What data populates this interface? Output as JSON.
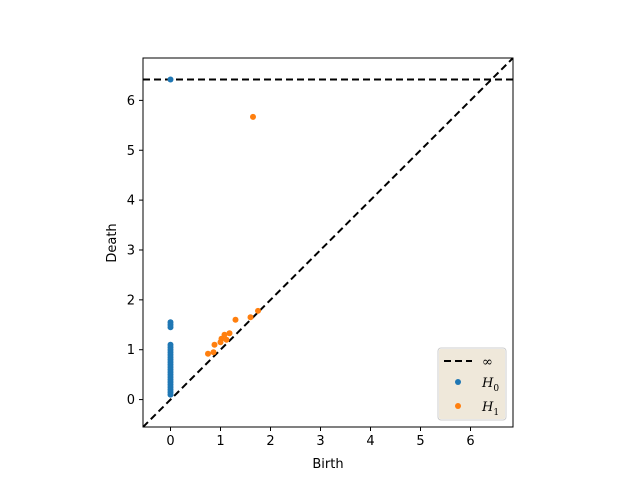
{
  "chart_data": {
    "type": "scatter",
    "title": "",
    "xlabel": "Birth",
    "ylabel": "Death",
    "xlim": [
      -0.55,
      6.85
    ],
    "ylim": [
      -0.55,
      6.85
    ],
    "xticks": [
      0,
      1,
      2,
      3,
      4,
      5,
      6
    ],
    "yticks": [
      0,
      1,
      2,
      3,
      4,
      5,
      6
    ],
    "grid": false,
    "legend_position": "bottom-right",
    "infinity_value": 6.42,
    "lines": [
      {
        "name": "∞",
        "kind": "horizontal",
        "y": 6.42,
        "style": "dashed",
        "color": "#000000"
      },
      {
        "kind": "diagonal",
        "style": "dashed",
        "color": "#000000"
      }
    ],
    "series": [
      {
        "name": "H",
        "subscript": "0",
        "color": "#1f77b4",
        "points": [
          [
            0,
            6.42
          ],
          [
            0,
            1.55
          ],
          [
            0,
            1.5
          ],
          [
            0,
            1.45
          ],
          [
            0,
            1.1
          ],
          [
            0,
            1.05
          ],
          [
            0,
            1.0
          ],
          [
            0,
            0.95
          ],
          [
            0,
            0.9
          ],
          [
            0,
            0.85
          ],
          [
            0,
            0.8
          ],
          [
            0,
            0.75
          ],
          [
            0,
            0.7
          ],
          [
            0,
            0.65
          ],
          [
            0,
            0.6
          ],
          [
            0,
            0.55
          ],
          [
            0,
            0.5
          ],
          [
            0,
            0.45
          ],
          [
            0,
            0.4
          ],
          [
            0,
            0.35
          ],
          [
            0,
            0.3
          ],
          [
            0,
            0.25
          ],
          [
            0,
            0.2
          ],
          [
            0,
            0.15
          ],
          [
            0,
            0.1
          ]
        ]
      },
      {
        "name": "H",
        "subscript": "1",
        "color": "#ff7f0e",
        "points": [
          [
            1.65,
            5.67
          ],
          [
            1.3,
            1.6
          ],
          [
            1.75,
            1.78
          ],
          [
            1.6,
            1.65
          ],
          [
            1.18,
            1.33
          ],
          [
            1.08,
            1.3
          ],
          [
            1.02,
            1.22
          ],
          [
            1.0,
            1.15
          ],
          [
            1.12,
            1.2
          ],
          [
            0.88,
            1.1
          ],
          [
            0.75,
            0.92
          ],
          [
            0.86,
            0.95
          ]
        ]
      }
    ]
  }
}
